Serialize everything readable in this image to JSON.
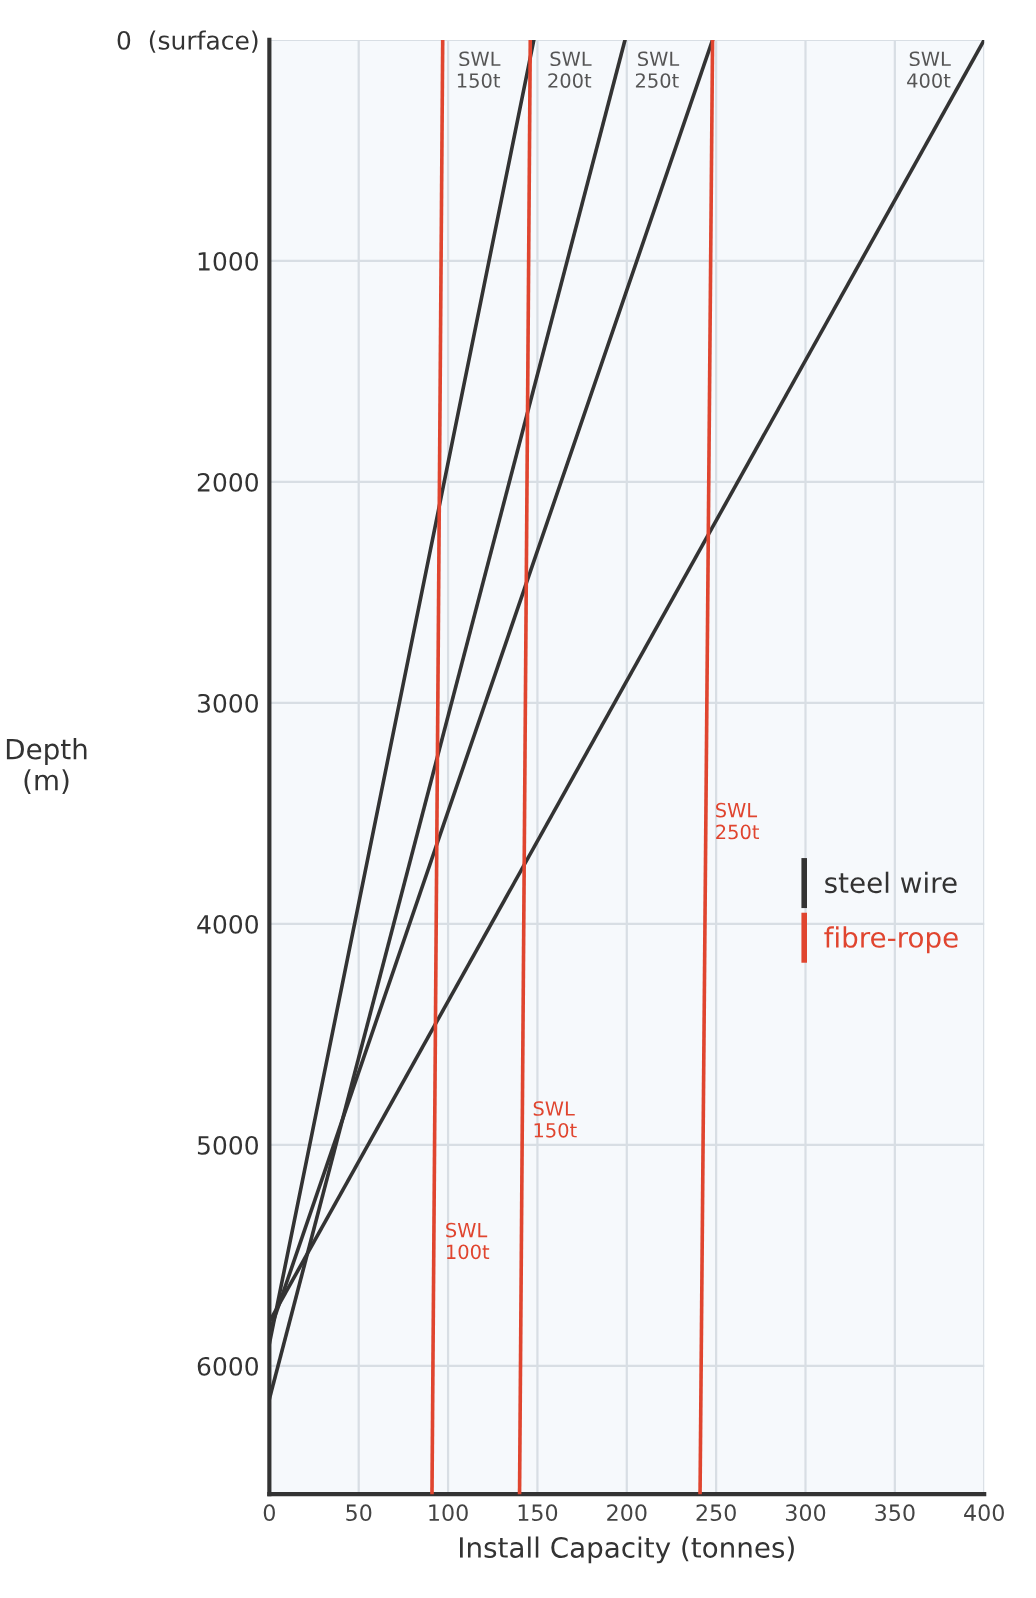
{
  "chart_data": {
    "type": "line",
    "xlabel": "Install Capacity (tonnes)",
    "ylabel": "Depth\n(m)",
    "xlim": [
      0,
      400
    ],
    "xticks": [
      0,
      50,
      100,
      150,
      200,
      250,
      300,
      350,
      400
    ],
    "ylim": [
      6580,
      0
    ],
    "yticks": [
      {
        "value": 0,
        "label": "0  (surface)"
      },
      1000,
      2000,
      3000,
      4000,
      5000,
      6000
    ],
    "grid": true,
    "legend": "right",
    "line_style": "solid",
    "marker": "none",
    "series": [
      {
        "name": "steel wire",
        "color": "#333333",
        "x": [
          148,
          0
        ],
        "values": [
          0,
          5900
        ]
      },
      {
        "color": "#333333",
        "x": [
          199,
          0
        ],
        "values": [
          0,
          6150
        ]
      },
      {
        "color": "#333333",
        "x": [
          248,
          0
        ],
        "values": [
          0,
          5850
        ]
      },
      {
        "color": "#333333",
        "x": [
          400,
          0
        ],
        "values": [
          0,
          5800
        ]
      },
      {
        "name": "fibre-rope",
        "color": "#e0452f",
        "x": [
          97,
          91
        ],
        "values": [
          0,
          6580
        ]
      },
      {
        "color": "#e0452f",
        "x": [
          146,
          140
        ],
        "values": [
          0,
          6580
        ]
      },
      {
        "color": "#e0452f",
        "x": [
          248,
          241
        ],
        "values": [
          0,
          6580
        ]
      }
    ],
    "annotations": [
      {
        "text": "SWL\n150t",
        "x": 148,
        "y": 0
      },
      {
        "text": "SWL\n200t",
        "x": 199,
        "y": 0
      },
      {
        "text": "SWL\n250t",
        "x": 248,
        "y": 0
      },
      {
        "text": "SWL\n400t",
        "x": 400,
        "y": 0
      },
      {
        "text": "SWL\n100t",
        "x": 92,
        "y": 5300
      },
      {
        "text": "SWL\n150t",
        "x": 141,
        "y": 4750
      },
      {
        "text": "SWL\n250t",
        "x": 243,
        "y": 3400
      }
    ]
  }
}
